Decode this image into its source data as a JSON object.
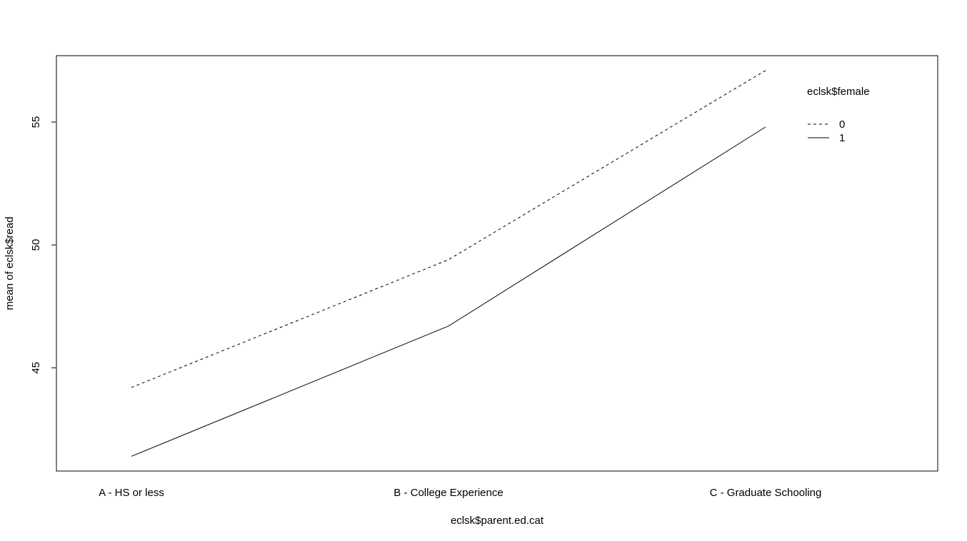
{
  "chart_data": {
    "type": "line",
    "title": "",
    "xlabel": "eclsk$parent.ed.cat",
    "ylabel": "mean of  eclsk$read",
    "categories": [
      "A - HS or less",
      "B - College Experience",
      "C - Graduate Schooling"
    ],
    "ylim": [
      40.8,
      57.7
    ],
    "yticks": [
      45,
      50,
      55
    ],
    "grid": false,
    "legend": {
      "title": "eclsk$female",
      "position": "top-right"
    },
    "series": [
      {
        "name": "0",
        "values": [
          44.2,
          49.4,
          57.1
        ],
        "line_style": "dashed"
      },
      {
        "name": "1",
        "values": [
          41.4,
          46.7,
          54.8
        ],
        "line_style": "solid"
      }
    ],
    "colors": {
      "line": "#000000",
      "frame": "#000000"
    }
  }
}
